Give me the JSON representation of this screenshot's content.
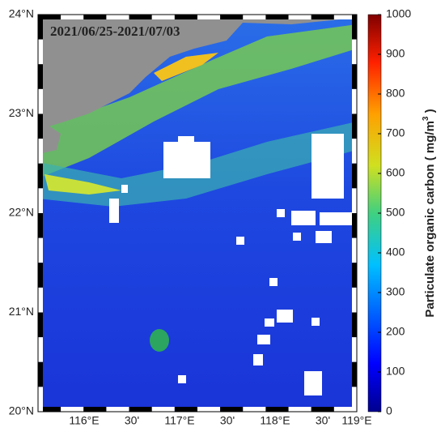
{
  "map": {
    "title": "2021/06/25-2021/07/03",
    "lat_labels": [
      "24°N",
      "23°N",
      "22°N",
      "21°N",
      "20°N"
    ],
    "lon_labels": [
      "116°E",
      "30'",
      "117°E",
      "30'",
      "118°E",
      "30'",
      "119°E"
    ],
    "colorbar": {
      "label": "Particulate organic carbon ( mg/m",
      "label_sup": "3",
      "label_end": " )",
      "lim": [
        0,
        1000
      ],
      "ticks": [
        0,
        100,
        200,
        300,
        400,
        500,
        600,
        700,
        800,
        900,
        1000
      ]
    }
  }
}
